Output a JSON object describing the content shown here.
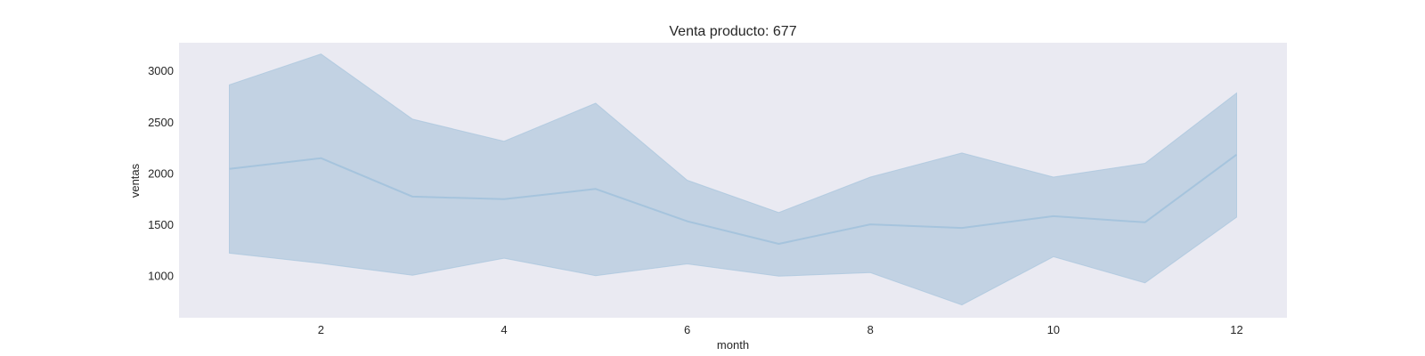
{
  "chart_data": {
    "type": "area",
    "title": "Venta producto: 677",
    "xlabel": "month",
    "ylabel": "ventas",
    "xlim": [
      0.45,
      12.55
    ],
    "ylim": [
      590,
      3270
    ],
    "x_ticks": [
      2,
      4,
      6,
      8,
      10,
      12
    ],
    "y_ticks": [
      1000,
      1500,
      2000,
      2500,
      3000
    ],
    "grid": false,
    "background": "#eaeaf2",
    "line_color": "#a6c4dd",
    "band_fill": "#c2d2e3",
    "series": [
      {
        "x": [
          1,
          2,
          3,
          4,
          5,
          6,
          7,
          8,
          9,
          10,
          11,
          12
        ],
        "mean": [
          2040,
          2145,
          1770,
          1745,
          1845,
          1530,
          1310,
          1500,
          1465,
          1580,
          1520,
          2180
        ],
        "upper": [
          2860,
          3160,
          2525,
          2310,
          2680,
          1930,
          1615,
          1960,
          2195,
          1960,
          2095,
          2780
        ],
        "lower": [
          1220,
          1120,
          1005,
          1170,
          1000,
          1115,
          995,
          1030,
          715,
          1185,
          930,
          1570
        ]
      }
    ]
  }
}
